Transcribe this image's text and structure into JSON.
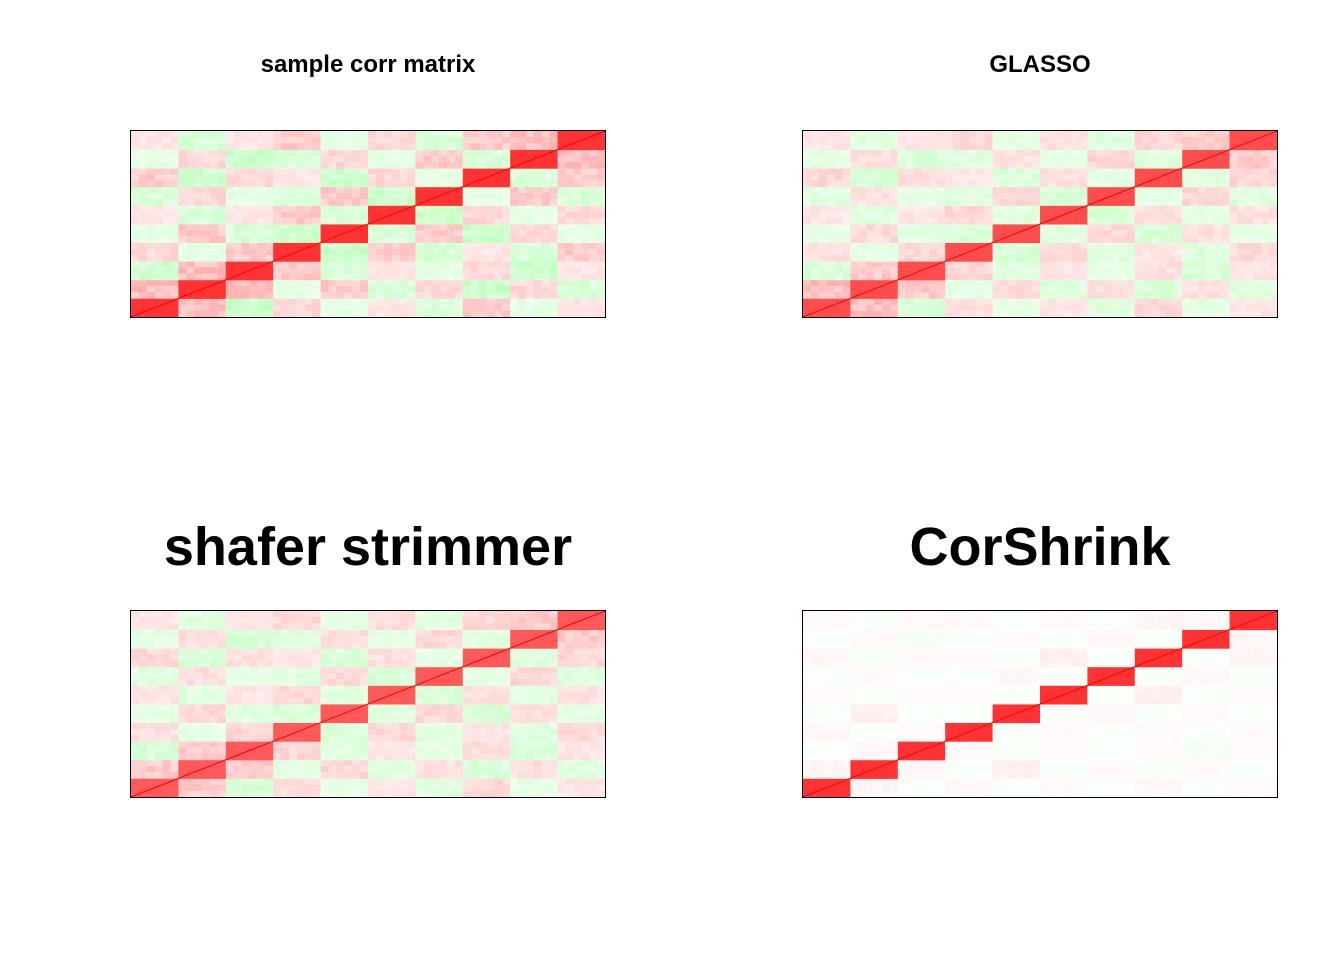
{
  "chart_data": [
    {
      "type": "heatmap",
      "title": "sample corr matrix",
      "blocks": 10,
      "colors": {
        "positive": "#ff0000",
        "negative": "#00ff00",
        "zero": "#ffffff"
      },
      "block_strength": 0.8,
      "diagonal_strength": 1.0,
      "off_block_values": [
        [
          1.0,
          0.25,
          -0.2,
          0.15,
          -0.1,
          0.1,
          -0.15,
          0.2,
          -0.1,
          0.1
        ],
        [
          0.25,
          1.0,
          0.25,
          -0.1,
          0.2,
          -0.15,
          0.15,
          -0.2,
          0.15,
          -0.15
        ],
        [
          -0.2,
          0.25,
          1.0,
          0.2,
          -0.15,
          0.1,
          -0.1,
          0.15,
          -0.2,
          0.1
        ],
        [
          0.15,
          -0.1,
          0.2,
          1.0,
          -0.2,
          0.2,
          -0.15,
          0.1,
          -0.15,
          0.2
        ],
        [
          -0.1,
          0.2,
          -0.15,
          -0.2,
          1.0,
          -0.15,
          0.2,
          -0.2,
          0.15,
          -0.1
        ],
        [
          0.1,
          -0.15,
          0.1,
          0.2,
          -0.15,
          1.0,
          -0.2,
          0.15,
          -0.1,
          0.15
        ],
        [
          -0.15,
          0.15,
          -0.1,
          -0.15,
          0.2,
          -0.2,
          1.0,
          -0.1,
          0.2,
          -0.15
        ],
        [
          0.2,
          -0.2,
          0.15,
          0.1,
          -0.2,
          0.15,
          -0.1,
          1.0,
          -0.15,
          0.2
        ],
        [
          -0.1,
          0.15,
          -0.2,
          -0.15,
          0.15,
          -0.1,
          0.2,
          -0.15,
          1.0,
          0.25
        ],
        [
          0.1,
          -0.15,
          0.1,
          0.2,
          -0.1,
          0.15,
          -0.15,
          0.2,
          0.25,
          1.0
        ]
      ]
    },
    {
      "type": "heatmap",
      "title": "GLASSO",
      "blocks": 10,
      "colors": {
        "positive": "#ff0000",
        "negative": "#00ff00",
        "zero": "#ffffff"
      },
      "block_strength": 0.7,
      "diagonal_strength": 1.0,
      "off_block_values": [
        [
          1.0,
          0.25,
          -0.15,
          0.12,
          -0.1,
          0.1,
          -0.12,
          0.15,
          -0.1,
          0.1
        ],
        [
          0.25,
          1.0,
          0.2,
          -0.1,
          0.15,
          -0.12,
          0.12,
          -0.15,
          0.12,
          -0.12
        ],
        [
          -0.15,
          0.2,
          1.0,
          0.15,
          -0.12,
          0.1,
          -0.1,
          0.12,
          -0.15,
          0.1
        ],
        [
          0.12,
          -0.1,
          0.15,
          1.0,
          -0.15,
          0.15,
          -0.12,
          0.1,
          -0.12,
          0.15
        ],
        [
          -0.1,
          0.15,
          -0.12,
          -0.15,
          1.0,
          -0.12,
          0.15,
          -0.15,
          0.12,
          -0.1
        ],
        [
          0.1,
          -0.12,
          0.1,
          0.15,
          -0.12,
          1.0,
          -0.15,
          0.12,
          -0.1,
          0.12
        ],
        [
          -0.12,
          0.12,
          -0.1,
          -0.12,
          0.15,
          -0.15,
          1.0,
          -0.1,
          0.15,
          -0.12
        ],
        [
          0.15,
          -0.15,
          0.12,
          0.1,
          -0.15,
          0.12,
          -0.1,
          1.0,
          -0.12,
          0.15
        ],
        [
          -0.1,
          0.12,
          -0.15,
          -0.12,
          0.12,
          -0.1,
          0.15,
          -0.12,
          1.0,
          0.2
        ],
        [
          0.1,
          -0.12,
          0.1,
          0.15,
          -0.1,
          0.12,
          -0.12,
          0.15,
          0.2,
          1.0
        ]
      ]
    },
    {
      "type": "heatmap",
      "title": "shafer strimmer",
      "blocks": 10,
      "colors": {
        "positive": "#ff0000",
        "negative": "#00ff00",
        "zero": "#ffffff"
      },
      "block_strength": 0.65,
      "diagonal_strength": 1.0,
      "off_block_values": [
        [
          1.0,
          0.2,
          -0.15,
          0.12,
          -0.1,
          0.1,
          -0.12,
          0.15,
          -0.1,
          0.1
        ],
        [
          0.2,
          1.0,
          0.2,
          -0.1,
          0.15,
          -0.12,
          0.12,
          -0.15,
          0.12,
          -0.12
        ],
        [
          -0.15,
          0.2,
          1.0,
          0.15,
          -0.12,
          0.1,
          -0.1,
          0.12,
          -0.15,
          0.1
        ],
        [
          0.12,
          -0.1,
          0.15,
          1.0,
          -0.15,
          0.15,
          -0.12,
          0.1,
          -0.12,
          0.15
        ],
        [
          -0.1,
          0.15,
          -0.12,
          -0.15,
          1.0,
          -0.12,
          0.15,
          -0.15,
          0.12,
          -0.1
        ],
        [
          0.1,
          -0.12,
          0.1,
          0.15,
          -0.12,
          1.0,
          -0.15,
          0.12,
          -0.1,
          0.12
        ],
        [
          -0.12,
          0.12,
          -0.1,
          -0.12,
          0.15,
          -0.15,
          1.0,
          -0.1,
          0.15,
          -0.12
        ],
        [
          0.15,
          -0.15,
          0.12,
          0.1,
          -0.15,
          0.12,
          -0.1,
          1.0,
          -0.12,
          0.15
        ],
        [
          -0.1,
          0.12,
          -0.15,
          -0.12,
          0.12,
          -0.1,
          0.15,
          -0.12,
          1.0,
          0.2
        ],
        [
          0.1,
          -0.12,
          0.1,
          0.15,
          -0.1,
          0.12,
          -0.12,
          0.15,
          0.2,
          1.0
        ]
      ]
    },
    {
      "type": "heatmap",
      "title": "CorShrink",
      "blocks": 10,
      "colors": {
        "positive": "#ff0000",
        "negative": "#00ff00",
        "zero": "#ffffff"
      },
      "block_strength": 0.8,
      "diagonal_strength": 1.0,
      "off_block_values": [
        [
          1.0,
          0.04,
          -0.02,
          0.03,
          -0.02,
          0.02,
          -0.02,
          0.03,
          -0.02,
          0.02
        ],
        [
          0.04,
          1.0,
          0.03,
          -0.02,
          0.06,
          -0.02,
          0.02,
          -0.03,
          0.02,
          -0.02
        ],
        [
          -0.02,
          0.03,
          1.0,
          0.02,
          -0.02,
          0.02,
          -0.02,
          0.02,
          -0.04,
          0.02
        ],
        [
          0.03,
          -0.02,
          0.02,
          1.0,
          -0.02,
          0.02,
          -0.02,
          0.02,
          -0.02,
          0.02
        ],
        [
          -0.02,
          0.06,
          -0.02,
          -0.02,
          1.0,
          -0.02,
          0.03,
          -0.02,
          0.02,
          -0.02
        ],
        [
          0.02,
          -0.02,
          0.02,
          0.02,
          -0.02,
          1.0,
          -0.02,
          0.06,
          -0.02,
          0.02
        ],
        [
          -0.02,
          0.02,
          -0.02,
          -0.02,
          0.03,
          -0.02,
          1.0,
          -0.02,
          0.03,
          -0.02
        ],
        [
          0.03,
          -0.03,
          0.02,
          0.02,
          -0.02,
          0.06,
          -0.02,
          1.0,
          -0.02,
          0.04
        ],
        [
          -0.02,
          0.02,
          -0.04,
          -0.02,
          0.02,
          -0.02,
          0.03,
          -0.02,
          1.0,
          0.03
        ],
        [
          0.02,
          -0.02,
          0.02,
          0.02,
          -0.02,
          0.02,
          -0.02,
          0.04,
          0.03,
          1.0
        ]
      ]
    }
  ]
}
